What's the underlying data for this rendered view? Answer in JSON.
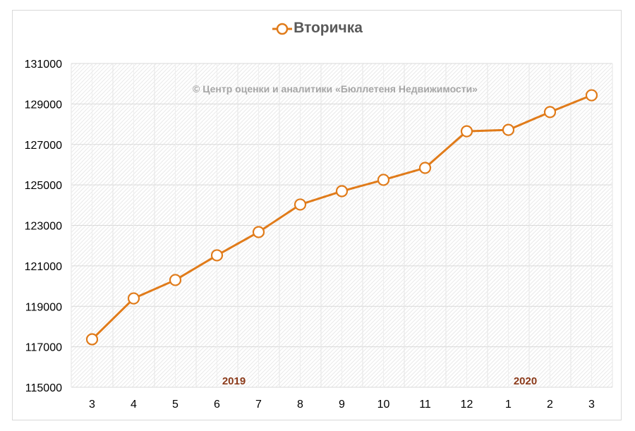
{
  "chart_data": {
    "type": "line",
    "title": "",
    "xlabel": "",
    "ylabel": "",
    "watermark": "© Центр оценки и аналитики «Бюллетеня Недвижимости»",
    "legend": {
      "position": "top",
      "entries": [
        "Вторичка"
      ]
    },
    "categories": [
      "3",
      "4",
      "5",
      "6",
      "7",
      "8",
      "9",
      "10",
      "11",
      "12",
      "1",
      "2",
      "3"
    ],
    "year_labels": [
      {
        "label": "2019",
        "category_index": 4
      },
      {
        "label": "2020",
        "category_index": 11
      }
    ],
    "series": [
      {
        "name": "Вторичка",
        "color": "#e07b1a",
        "marker": "open-circle",
        "values": [
          117370,
          119390,
          120300,
          121520,
          122670,
          124030,
          124690,
          125250,
          125840,
          127650,
          127720,
          128600,
          129430
        ]
      }
    ],
    "ylim": [
      115000,
      131000
    ],
    "yticks": [
      115000,
      117000,
      119000,
      121000,
      123000,
      125000,
      127000,
      129000,
      131000
    ],
    "grid": true,
    "colors": {
      "line": "#e07b1a",
      "year_label": "#8b3a1a",
      "plot_hatch": "#e3e3e3"
    }
  }
}
